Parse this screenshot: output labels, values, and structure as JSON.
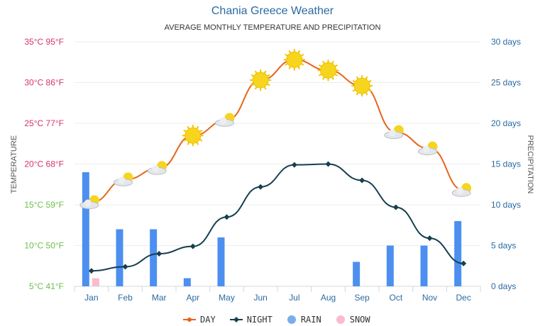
{
  "chart_data": {
    "type": "line",
    "title": "Chania Greece Weather",
    "subtitle": "AVERAGE MONTHLY TEMPERATURE AND PRECIPITATION",
    "ylabel_left": "TEMPERATURE",
    "ylabel_right": "PRECIPITATION",
    "categories": [
      "Jan",
      "Feb",
      "Mar",
      "Apr",
      "May",
      "Jun",
      "Jul",
      "Aug",
      "Sep",
      "Oct",
      "Nov",
      "Dec"
    ],
    "left_axis": {
      "range_c": [
        5,
        35
      ],
      "ticks": [
        "5°C 41°F",
        "10°C 50°F",
        "15°C 59°F",
        "20°C 68°F",
        "25°C 77°F",
        "30°C 86°F",
        "35°C 95°F"
      ],
      "tick_colors": [
        "#6cbf4a",
        "#6cbf4a",
        "#6cbf4a",
        "#d6336c",
        "#d6336c",
        "#d6336c",
        "#d6336c"
      ]
    },
    "right_axis": {
      "range": [
        0,
        30
      ],
      "ticks": [
        "0 days",
        "5 days",
        "10 days",
        "15 days",
        "20 days",
        "25 days",
        "30 days"
      ],
      "color": "#2b6aa0"
    },
    "grid": true,
    "legend_position": "bottom",
    "series": [
      {
        "name": "DAY",
        "type": "line",
        "color": "#e8641b",
        "values": [
          15.3,
          18.1,
          19.5,
          23.5,
          25.4,
          30.3,
          32.8,
          31.5,
          29.6,
          23.9,
          21.9,
          16.8
        ],
        "icons": [
          "sun-cloud",
          "sun-cloud",
          "sun-cloud",
          "sun",
          "sun-cloud",
          "sun",
          "sun",
          "sun",
          "sun",
          "sun-cloud",
          "sun-cloud",
          "sun-cloud"
        ]
      },
      {
        "name": "NIGHT",
        "type": "line",
        "color": "#173f4f",
        "values": [
          6.9,
          7.4,
          9.0,
          9.9,
          13.5,
          17.2,
          19.9,
          20.0,
          18.0,
          14.7,
          10.9,
          7.8
        ]
      },
      {
        "name": "RAIN",
        "type": "bar",
        "color": "#4d8ff0",
        "legend_color": "#7aaeea",
        "values": [
          14,
          7,
          7,
          1,
          6,
          0,
          0,
          0,
          3,
          5,
          5,
          8
        ]
      },
      {
        "name": "SNOW",
        "type": "bar",
        "color": "#f8bccb",
        "values": [
          1,
          0,
          0,
          0,
          0,
          0,
          0,
          0,
          0,
          0,
          0,
          0
        ]
      }
    ]
  }
}
